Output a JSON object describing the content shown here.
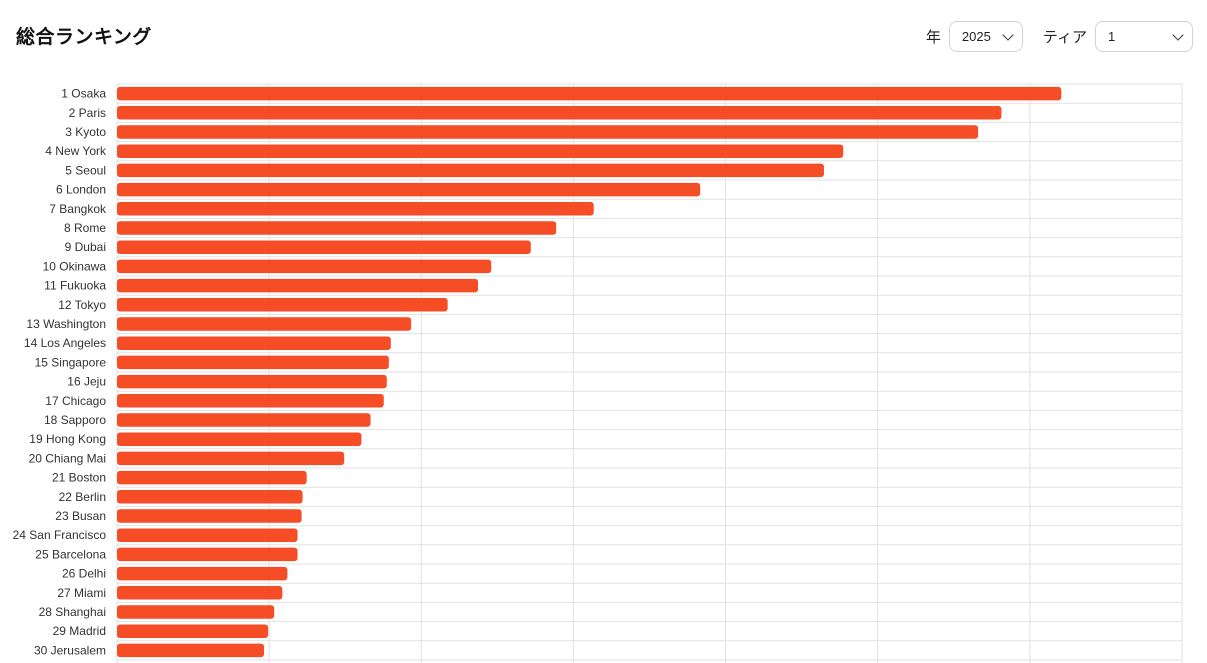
{
  "header": {
    "title": "総合ランキング"
  },
  "filters": {
    "year_label": "年",
    "year_value": "2025",
    "tier_label": "ティア",
    "tier_value": "1"
  },
  "colors": {
    "bar": "#f54e27",
    "grid": "#e2e2e2"
  },
  "chart_data": {
    "type": "bar",
    "orientation": "horizontal",
    "title": "",
    "xlabel": "",
    "ylabel": "",
    "grid": true,
    "legend": "none",
    "xlim": [
      0,
      1050
    ],
    "categories": [
      "1 Osaka",
      "2 Paris",
      "3 Kyoto",
      "4 New York",
      "5 Seoul",
      "6 London",
      "7 Bangkok",
      "8 Rome",
      "9 Dubai",
      "10 Okinawa",
      "11 Fukuoka",
      "12 Tokyo",
      "13 Washington",
      "14 Los Angeles",
      "15 Singapore",
      "16 Jeju",
      "17 Chicago",
      "18 Sapporo",
      "19 Hong Kong",
      "20 Chiang Mai",
      "21 Boston",
      "22 Berlin",
      "23 Busan",
      "24 San Francisco",
      "25 Barcelona",
      "26 Delhi",
      "27 Miami",
      "28 Shanghai",
      "29 Madrid",
      "30 Jerusalem"
    ],
    "values": [
      931,
      872,
      849,
      716,
      697,
      575,
      470,
      433,
      408,
      369,
      356,
      326,
      290,
      270,
      268,
      266,
      263,
      250,
      241,
      224,
      187,
      183,
      182,
      178,
      178,
      168,
      163,
      155,
      149,
      145
    ]
  }
}
